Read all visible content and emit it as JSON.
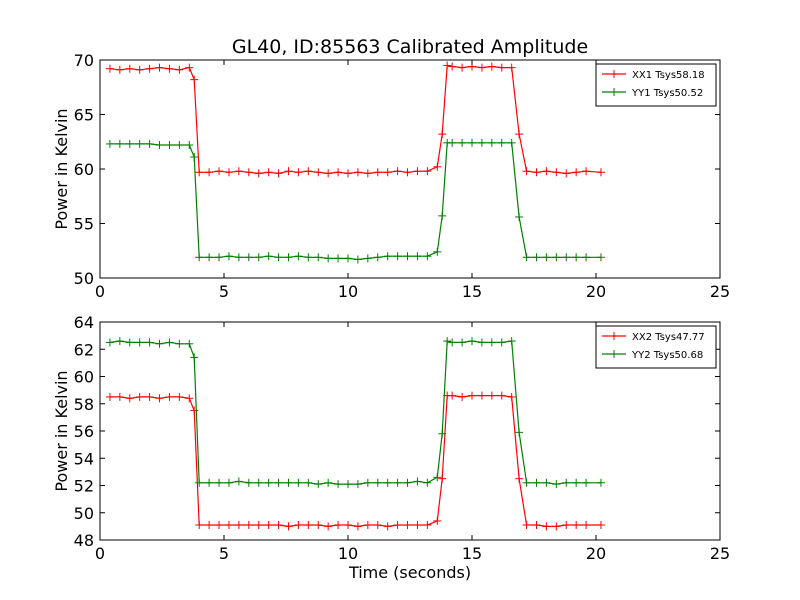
{
  "title": "GL40, ID:85563 Calibrated Amplitude",
  "colors": {
    "red": "#ff0000",
    "green": "#008000",
    "axes": "#000000",
    "background": "#ffffff"
  },
  "chart_data": [
    {
      "type": "line",
      "xlabel": "",
      "ylabel": "Power in Kelvin",
      "xlim": [
        0,
        25
      ],
      "ylim": [
        50,
        70
      ],
      "xticks": [
        0,
        5,
        10,
        15,
        20,
        25
      ],
      "yticks": [
        50,
        55,
        60,
        65,
        70
      ],
      "grid": false,
      "legend": "top-right",
      "marker": "+",
      "x": [
        0.4,
        0.8,
        1.2,
        1.6,
        2.0,
        2.4,
        2.8,
        3.2,
        3.6,
        3.8,
        4.0,
        4.4,
        4.8,
        5.2,
        5.6,
        6.0,
        6.4,
        6.8,
        7.2,
        7.6,
        8.0,
        8.4,
        8.8,
        9.2,
        9.6,
        10.0,
        10.4,
        10.8,
        11.2,
        11.6,
        12.0,
        12.4,
        12.8,
        13.2,
        13.6,
        13.8,
        14.0,
        14.2,
        14.6,
        15.0,
        15.4,
        15.8,
        16.2,
        16.6,
        16.9,
        17.2,
        17.6,
        18.0,
        18.4,
        18.8,
        19.2,
        19.6,
        20.2
      ],
      "series": [
        {
          "name": "XX1 Tsys58.18",
          "color": "#ff0000",
          "values": [
            69.2,
            69.1,
            69.2,
            69.1,
            69.2,
            69.3,
            69.2,
            69.1,
            69.3,
            68.2,
            59.7,
            59.7,
            59.8,
            59.7,
            59.8,
            59.7,
            59.6,
            59.7,
            59.6,
            59.8,
            59.7,
            59.8,
            59.7,
            59.6,
            59.7,
            59.6,
            59.7,
            59.6,
            59.7,
            59.7,
            59.8,
            59.7,
            59.8,
            59.8,
            60.2,
            63.2,
            69.5,
            69.4,
            69.3,
            69.4,
            69.3,
            69.4,
            69.3,
            69.3,
            63.2,
            59.8,
            59.7,
            59.8,
            59.7,
            59.6,
            59.7,
            59.8,
            59.7
          ]
        },
        {
          "name": "YY1 Tsys50.52",
          "color": "#008000",
          "values": [
            62.3,
            62.3,
            62.3,
            62.3,
            62.3,
            62.2,
            62.2,
            62.2,
            62.2,
            61.1,
            51.9,
            51.9,
            51.9,
            52.0,
            51.9,
            51.9,
            51.9,
            52.0,
            51.9,
            51.9,
            52.0,
            51.9,
            51.9,
            51.8,
            51.8,
            51.8,
            51.7,
            51.8,
            51.9,
            52.0,
            52.0,
            52.0,
            52.0,
            52.0,
            52.4,
            55.7,
            62.4,
            62.4,
            62.4,
            62.4,
            62.4,
            62.4,
            62.4,
            62.4,
            55.6,
            51.9,
            51.9,
            51.9,
            51.9,
            51.9,
            51.9,
            51.9,
            51.9
          ]
        }
      ]
    },
    {
      "type": "line",
      "xlabel": "Time (seconds)",
      "ylabel": "Power in Kelvin",
      "xlim": [
        0,
        25
      ],
      "ylim": [
        48,
        64
      ],
      "xticks": [
        0,
        5,
        10,
        15,
        20,
        25
      ],
      "yticks": [
        48,
        50,
        52,
        54,
        56,
        58,
        60,
        62,
        64
      ],
      "grid": false,
      "legend": "top-right",
      "marker": "+",
      "x": [
        0.4,
        0.8,
        1.2,
        1.6,
        2.0,
        2.4,
        2.8,
        3.2,
        3.6,
        3.8,
        4.0,
        4.4,
        4.8,
        5.2,
        5.6,
        6.0,
        6.4,
        6.8,
        7.2,
        7.6,
        8.0,
        8.4,
        8.8,
        9.2,
        9.6,
        10.0,
        10.4,
        10.8,
        11.2,
        11.6,
        12.0,
        12.4,
        12.8,
        13.2,
        13.6,
        13.8,
        14.0,
        14.2,
        14.6,
        15.0,
        15.4,
        15.8,
        16.2,
        16.6,
        16.9,
        17.2,
        17.6,
        18.0,
        18.4,
        18.8,
        19.2,
        19.6,
        20.2
      ],
      "series": [
        {
          "name": "XX2 Tsys47.77",
          "color": "#ff0000",
          "values": [
            58.5,
            58.5,
            58.4,
            58.5,
            58.5,
            58.4,
            58.5,
            58.5,
            58.4,
            57.5,
            49.1,
            49.1,
            49.1,
            49.1,
            49.1,
            49.1,
            49.1,
            49.1,
            49.1,
            49.0,
            49.1,
            49.1,
            49.1,
            49.0,
            49.1,
            49.1,
            49.0,
            49.1,
            49.1,
            49.0,
            49.1,
            49.1,
            49.1,
            49.1,
            49.4,
            52.5,
            58.6,
            58.6,
            58.5,
            58.6,
            58.6,
            58.6,
            58.6,
            58.5,
            52.5,
            49.1,
            49.1,
            49.0,
            49.0,
            49.1,
            49.1,
            49.1,
            49.1
          ]
        },
        {
          "name": "YY2 Tsys50.68",
          "color": "#008000",
          "values": [
            62.5,
            62.6,
            62.5,
            62.5,
            62.5,
            62.4,
            62.5,
            62.4,
            62.4,
            61.4,
            52.2,
            52.2,
            52.2,
            52.2,
            52.3,
            52.2,
            52.2,
            52.2,
            52.2,
            52.2,
            52.2,
            52.2,
            52.1,
            52.2,
            52.1,
            52.1,
            52.1,
            52.2,
            52.2,
            52.2,
            52.2,
            52.2,
            52.3,
            52.2,
            52.6,
            55.8,
            62.6,
            62.5,
            62.5,
            62.6,
            62.5,
            62.5,
            62.5,
            62.6,
            55.9,
            52.2,
            52.2,
            52.2,
            52.1,
            52.2,
            52.2,
            52.2,
            52.2
          ]
        }
      ]
    }
  ]
}
